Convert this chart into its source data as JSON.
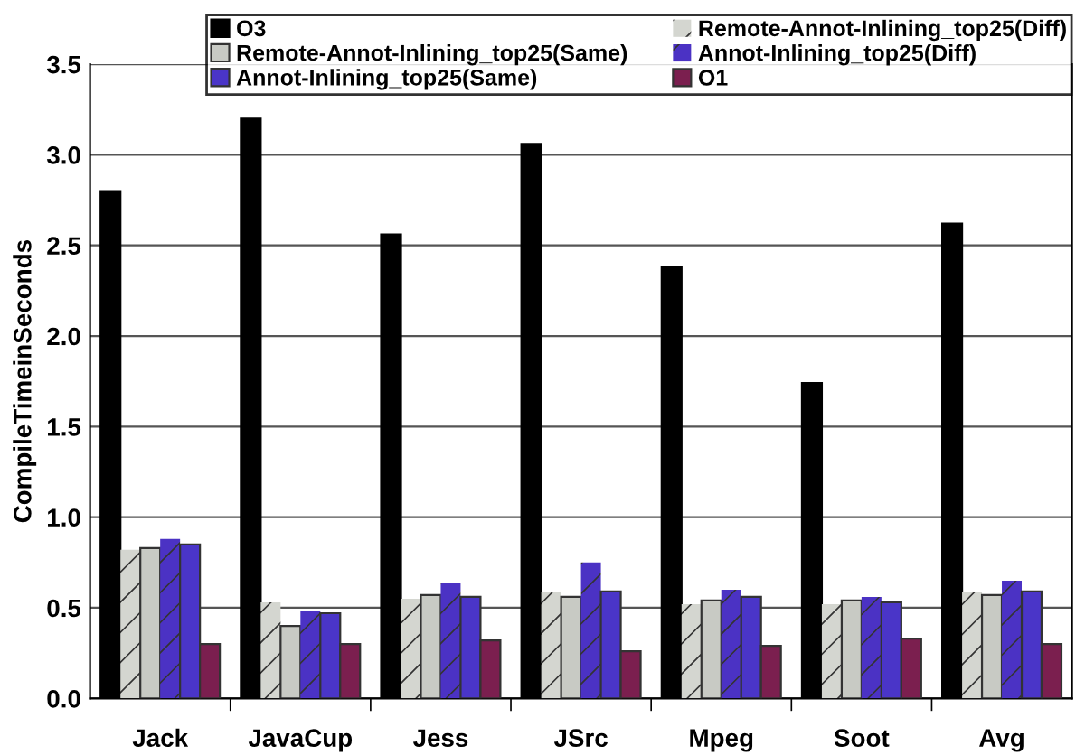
{
  "chart_data": {
    "type": "bar",
    "ylabel": "CompileTimeinSeconds",
    "categories": [
      "Jack",
      "JavaCup",
      "Jess",
      "JSrc",
      "Mpeg",
      "Soot",
      "Avg"
    ],
    "series": [
      {
        "name": "O3",
        "color": "#000000",
        "values": [
          2.8,
          3.2,
          2.56,
          3.06,
          2.38,
          1.74,
          2.62
        ]
      },
      {
        "name": "Remote-Annot-Inlining_top25(Diff)",
        "color": "#d4d6d0",
        "values": [
          0.82,
          0.53,
          0.55,
          0.59,
          0.52,
          0.52,
          0.59
        ]
      },
      {
        "name": "Remote-Annot-Inlining_top25(Same)",
        "color": "#c8cac4",
        "values": [
          0.83,
          0.4,
          0.57,
          0.56,
          0.54,
          0.54,
          0.57
        ]
      },
      {
        "name": "Annot-Inlining_top25(Diff)",
        "color": "#4b32c4",
        "values": [
          0.88,
          0.48,
          0.64,
          0.75,
          0.6,
          0.56,
          0.65
        ]
      },
      {
        "name": "Annot-Inlining_top25(Same)",
        "color": "#4a35c8",
        "values": [
          0.85,
          0.47,
          0.56,
          0.59,
          0.56,
          0.53,
          0.59
        ]
      },
      {
        "name": "O1",
        "color": "#7b1f4f",
        "values": [
          0.3,
          0.3,
          0.32,
          0.26,
          0.29,
          0.33,
          0.3
        ]
      }
    ],
    "ylim": [
      0,
      3.5
    ],
    "yticks": [
      {
        "value": 0,
        "label": "0.0"
      },
      {
        "value": 0.5,
        "label": "0.5"
      },
      {
        "value": 1.0,
        "label": "1.0"
      },
      {
        "value": 1.5,
        "label": "1.5"
      },
      {
        "value": 2.0,
        "label": "2.0"
      },
      {
        "value": 2.5,
        "label": "2.5"
      },
      {
        "value": 3.0,
        "label": "3.0"
      },
      {
        "value": 3.5,
        "label": "3.5"
      }
    ],
    "grid": "y",
    "legend": "top"
  }
}
